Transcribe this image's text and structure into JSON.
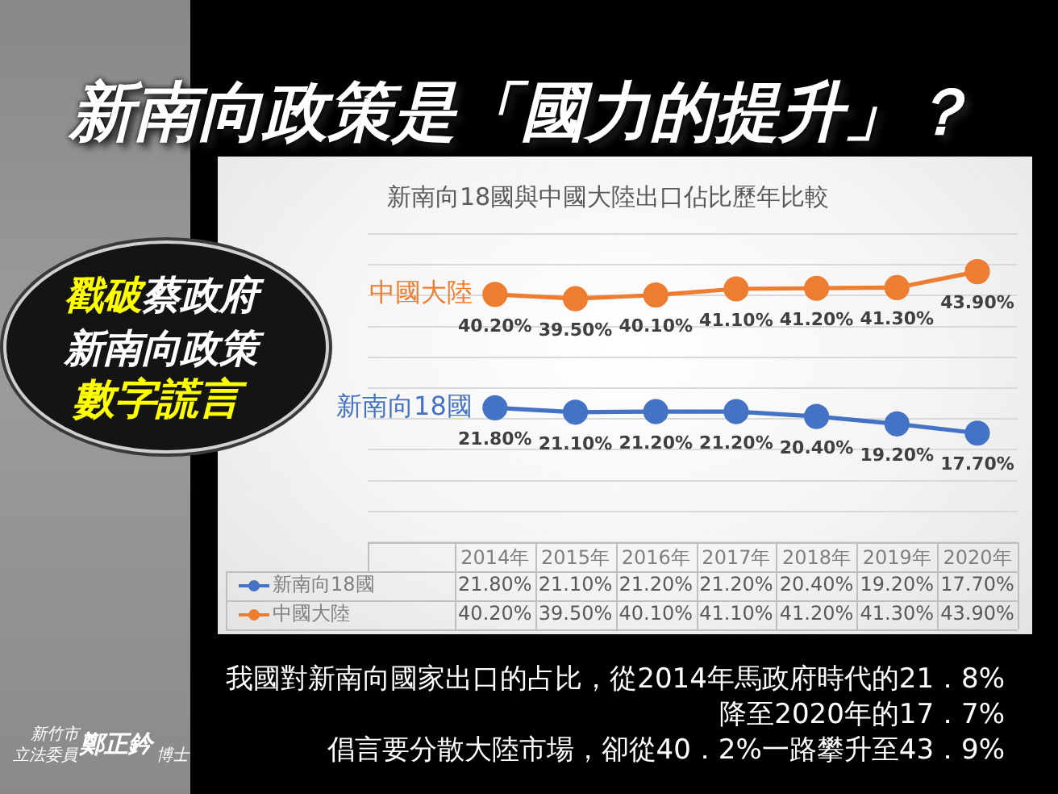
{
  "chart_data": {
    "type": "line",
    "title": "新南向政策是「國力的提升」？",
    "subtitle": "新南向18國與中國大陸出口佔比歷年比較",
    "categories": [
      "2014年",
      "2015年",
      "2016年",
      "2017年",
      "2018年",
      "2019年",
      "2020年"
    ],
    "series": [
      {
        "name": "新南向18國",
        "color": "#4472c4",
        "values": [
          21.8,
          21.1,
          21.2,
          21.2,
          20.4,
          19.2,
          17.7
        ],
        "value_labels": [
          "21.80%",
          "21.10%",
          "21.20%",
          "21.20%",
          "20.40%",
          "19.20%",
          "17.70%"
        ]
      },
      {
        "name": "中國大陸",
        "color": "#ed7d31",
        "values": [
          40.2,
          39.5,
          40.1,
          41.1,
          41.2,
          41.3,
          43.9
        ],
        "value_labels": [
          "40.20%",
          "39.50%",
          "40.10%",
          "41.10%",
          "41.20%",
          "41.30%",
          "43.90%"
        ]
      }
    ],
    "ylim": [
      0,
      50
    ],
    "yticks": [
      {
        "value": 0,
        "label": null
      },
      {
        "value": 5,
        "label": null
      },
      {
        "value": 10,
        "label": null
      },
      {
        "value": 15,
        "label": null
      },
      {
        "value": 20,
        "label": null
      },
      {
        "value": 25,
        "label": null
      },
      {
        "value": 30,
        "label": null
      },
      {
        "value": 35,
        "label": null
      },
      {
        "value": 40,
        "label": null
      },
      {
        "value": 45,
        "label": null
      },
      {
        "value": 50,
        "label": null
      }
    ],
    "tick_labels": "x",
    "grid": "y",
    "legend": "bottom",
    "marker": "circle",
    "line_style": "solid",
    "annotations": [
      "戳破",
      "蔡政府",
      "新南向政策",
      "數字謊言",
      "我國對新南向國家出口的占比，從2014年馬政府時代的21．8%",
      "降至2020年的17．7%",
      "倡言要分散大陸市場，卻從40．2%一路攀升至43．9%",
      "新竹市",
      "立法委員",
      "鄭正鈐",
      "博士"
    ]
  }
}
